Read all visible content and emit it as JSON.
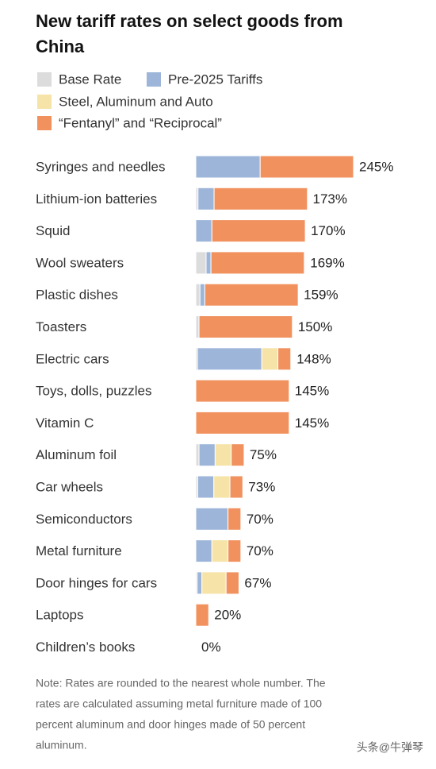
{
  "chart_data": {
    "type": "stacked-bar",
    "orientation": "horizontal",
    "title_lines": [
      "New tariff rates on select goods from",
      "China"
    ],
    "categories": [
      "Syringes and needles",
      "Lithium-ion batteries",
      "Squid",
      "Wool sweaters",
      "Plastic dishes",
      "Toasters",
      "Electric cars",
      "Toys, dolls, puzzles",
      "Vitamin C",
      "Aluminum foil",
      "Car wheels",
      "Semiconductors",
      "Metal furniture",
      "Door hinges for cars",
      "Laptops",
      "Children’s books"
    ],
    "series": [
      {
        "name": "Base Rate",
        "color": "#dcdcdc",
        "values": [
          0,
          3.4,
          0,
          16,
          6.5,
          5,
          2.5,
          0,
          0,
          5,
          3,
          0,
          0,
          2,
          0,
          0
        ]
      },
      {
        "name": "Pre-2025 Tariffs",
        "color": "#9db5d9",
        "values": [
          100,
          25,
          25,
          7.5,
          7.5,
          0,
          100,
          0,
          0,
          25,
          25,
          50,
          25,
          7.5,
          0,
          0
        ]
      },
      {
        "name": "Steel, Aluminum and Auto",
        "color": "#f6e3a7",
        "values": [
          0,
          0,
          0,
          0,
          0,
          0,
          25,
          0,
          0,
          25,
          25,
          0,
          25,
          37.5,
          0,
          0
        ]
      },
      {
        "name": "“Fentanyl” and “Reciprocal”",
        "color": "#f0915e",
        "values": [
          145,
          145,
          145,
          145,
          145,
          145,
          20,
          145,
          145,
          20,
          20,
          20,
          20,
          20,
          20,
          0
        ]
      }
    ],
    "totals": [
      245,
      173,
      170,
      169,
      159,
      150,
      148,
      145,
      145,
      75,
      73,
      70,
      70,
      67,
      20,
      0
    ],
    "value_labels": [
      "245%",
      "173%",
      "170%",
      "169%",
      "159%",
      "150%",
      "148%",
      "145%",
      "145%",
      "75%",
      "73%",
      "70%",
      "70%",
      "67%",
      "20%",
      "0%"
    ],
    "xlim": [
      0,
      245
    ],
    "note_lines": [
      "Note: Rates are rounded to the nearest whole number. The",
      "rates are calculated assuming metal furniture made of 100",
      "percent aluminum and door hinges made of 50 percent",
      "aluminum."
    ],
    "watermark": "头条@牛弹琴"
  }
}
